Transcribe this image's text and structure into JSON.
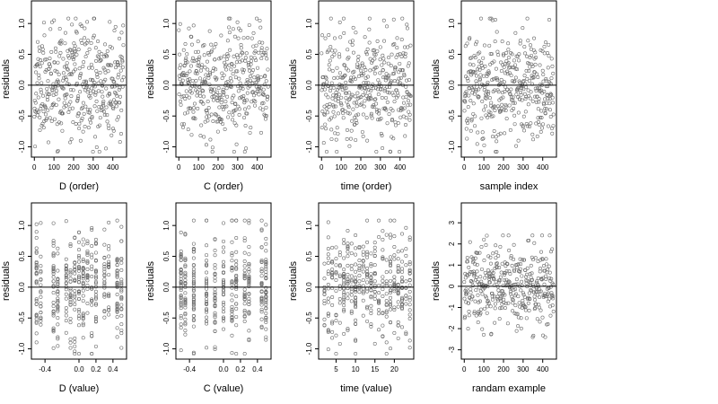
{
  "chart_data": [
    {
      "type": "scatter",
      "xlabel": "D (order)",
      "ylabel": "residuals",
      "xlim": [
        -15,
        470
      ],
      "ylim": [
        -1.05,
        1.25
      ],
      "xticks": [
        0,
        100,
        200,
        300,
        400
      ],
      "xtick_labels": [
        "0",
        "100",
        "200",
        "300",
        "400"
      ],
      "yticks": [
        -1.0,
        -0.5,
        0.0,
        0.5,
        1.0
      ],
      "ytick_labels": [
        "-1.0",
        "-0.5",
        "0.0",
        "0.5",
        "1.0"
      ],
      "reference_line_y": 0,
      "x_kind": "index",
      "n_points": 400,
      "spread": 0.45,
      "seed": 11
    },
    {
      "type": "scatter",
      "xlabel": "C (order)",
      "ylabel": "residuals",
      "xlim": [
        -15,
        470
      ],
      "ylim": [
        -1.05,
        1.25
      ],
      "xticks": [
        0,
        100,
        200,
        300,
        400
      ],
      "xtick_labels": [
        "0",
        "100",
        "200",
        "300",
        "400"
      ],
      "yticks": [
        -1.0,
        -0.5,
        0.0,
        0.5,
        1.0
      ],
      "ytick_labels": [
        "-1.0",
        "-0.5",
        "0.0",
        "0.5",
        "1.0"
      ],
      "reference_line_y": 0,
      "x_kind": "index",
      "n_points": 400,
      "spread": 0.45,
      "seed": 23
    },
    {
      "type": "scatter",
      "xlabel": "time (order)",
      "ylabel": "residuals",
      "xlim": [
        -15,
        470
      ],
      "ylim": [
        -1.05,
        1.25
      ],
      "xticks": [
        0,
        100,
        200,
        300,
        400
      ],
      "xtick_labels": [
        "0",
        "100",
        "200",
        "300",
        "400"
      ],
      "yticks": [
        -1.0,
        -0.5,
        0.0,
        0.5,
        1.0
      ],
      "ytick_labels": [
        "-1.0",
        "-0.5",
        "0.0",
        "0.5",
        "1.0"
      ],
      "reference_line_y": 0,
      "x_kind": "index",
      "n_points": 400,
      "spread": 0.45,
      "seed": 37
    },
    {
      "type": "scatter",
      "xlabel": "sample index",
      "ylabel": "residuals",
      "xlim": [
        -15,
        470
      ],
      "ylim": [
        -1.05,
        1.25
      ],
      "xticks": [
        0,
        100,
        200,
        300,
        400
      ],
      "xtick_labels": [
        "0",
        "100",
        "200",
        "300",
        "400"
      ],
      "yticks": [
        -1.0,
        -0.5,
        0.0,
        0.5,
        1.0
      ],
      "ytick_labels": [
        "-1.0",
        "-0.5",
        "0.0",
        "0.5",
        "1.0"
      ],
      "reference_line_y": 0,
      "x_kind": "index",
      "n_points": 400,
      "spread": 0.45,
      "seed": 41
    },
    {
      "type": "scatter",
      "xlabel": "D (value)",
      "ylabel": "residuals",
      "xlim": [
        -0.56,
        0.56
      ],
      "ylim": [
        -1.05,
        1.25
      ],
      "xticks": [
        -0.4,
        0.0,
        0.2,
        0.4
      ],
      "xtick_labels": [
        "-0.4",
        "0.0",
        "0.2",
        "0.4"
      ],
      "yticks": [
        -1.0,
        -0.5,
        0.0,
        0.5,
        1.0
      ],
      "ytick_labels": [
        "-1.0",
        "-0.5",
        "0.0",
        "0.5",
        "1.0"
      ],
      "reference_line_y": 0,
      "x_kind": "columns",
      "x_levels": [
        -0.5,
        -0.45,
        -0.3,
        -0.25,
        -0.15,
        -0.1,
        -0.05,
        0.0,
        0.05,
        0.1,
        0.15,
        0.2,
        0.3,
        0.35,
        0.45,
        0.5
      ],
      "n_points": 400,
      "spread": 0.45,
      "seed": 53
    },
    {
      "type": "scatter",
      "xlabel": "C (value)",
      "ylabel": "residuals",
      "xlim": [
        -0.56,
        0.56
      ],
      "ylim": [
        -1.05,
        1.25
      ],
      "xticks": [
        -0.4,
        0.0,
        0.2,
        0.4
      ],
      "xtick_labels": [
        "-0.4",
        "0.0",
        "0.2",
        "0.4"
      ],
      "yticks": [
        -1.0,
        -0.5,
        0.0,
        0.5,
        1.0
      ],
      "ytick_labels": [
        "-1.0",
        "-0.5",
        "0.0",
        "0.5",
        "1.0"
      ],
      "reference_line_y": 0,
      "x_kind": "columns",
      "x_levels": [
        -0.5,
        -0.45,
        -0.35,
        -0.2,
        -0.1,
        0.0,
        0.1,
        0.15,
        0.25,
        0.3,
        0.45,
        0.5
      ],
      "n_points": 400,
      "spread": 0.45,
      "seed": 67
    },
    {
      "type": "scatter",
      "xlabel": "time (value)",
      "ylabel": "residuals",
      "xlim": [
        0.5,
        25
      ],
      "ylim": [
        -1.05,
        1.25
      ],
      "xticks": [
        5,
        10,
        15,
        20
      ],
      "xtick_labels": [
        "5",
        "10",
        "15",
        "20"
      ],
      "yticks": [
        -1.0,
        -0.5,
        0.0,
        0.5,
        1.0
      ],
      "ytick_labels": [
        "-1.0",
        "-0.5",
        "0.0",
        "0.5",
        "1.0"
      ],
      "reference_line_y": 0,
      "x_kind": "columns",
      "x_levels": [
        2,
        3,
        4,
        5,
        6,
        7,
        8,
        9,
        10,
        11,
        12,
        13,
        14,
        15,
        16,
        17,
        18,
        19,
        20,
        21,
        22,
        23,
        24
      ],
      "n_points": 400,
      "spread": 0.45,
      "seed": 79
    },
    {
      "type": "scatter",
      "xlabel": "randam example",
      "ylabel": "residuals",
      "xlim": [
        -15,
        470
      ],
      "ylim": [
        -3.1,
        3.6
      ],
      "xticks": [
        0,
        100,
        200,
        300,
        400
      ],
      "xtick_labels": [
        "0",
        "100",
        "200",
        "300",
        "400"
      ],
      "yticks": [
        -3,
        -2,
        -1,
        0,
        1,
        2,
        3
      ],
      "ytick_labels": [
        "-3",
        "-2",
        "-1",
        "0",
        "1",
        "2",
        "3"
      ],
      "reference_line_y": 0,
      "x_kind": "index",
      "n_points": 400,
      "spread": 1.0,
      "seed": 97
    }
  ]
}
